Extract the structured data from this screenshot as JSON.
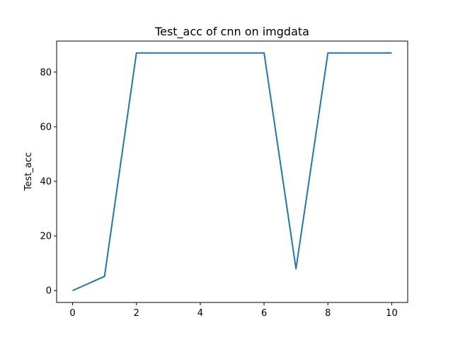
{
  "chart_data": {
    "type": "line",
    "title": "Test_acc of cnn on imgdata",
    "xlabel": "",
    "ylabel": "Test_acc",
    "xlim": [
      -0.5,
      10.5
    ],
    "ylim": [
      -4.35,
      91.35
    ],
    "x_ticks": [
      0,
      2,
      4,
      6,
      8,
      10
    ],
    "y_ticks": [
      0,
      20,
      40,
      60,
      80
    ],
    "grid": false,
    "series": [
      {
        "color": "#1f77b4",
        "x": [
          0,
          1,
          2,
          3,
          4,
          5,
          6,
          7,
          8,
          9,
          10
        ],
        "y": [
          0,
          5.2,
          87,
          87,
          87,
          87,
          87,
          8,
          87,
          87,
          87
        ]
      }
    ]
  }
}
